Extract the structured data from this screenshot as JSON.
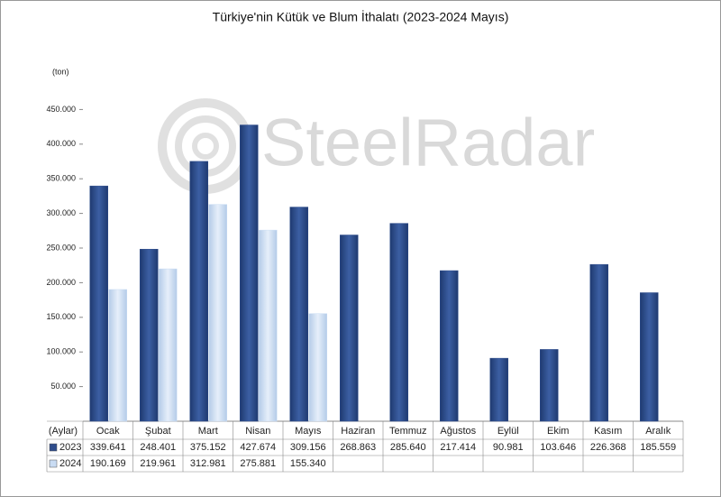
{
  "chart_data": {
    "type": "bar",
    "title": "Türkiye'nin Kütük ve Blum İthalatı (2023-2024 Mayıs)",
    "y_label": "(ton)",
    "x_label": "(Aylar)",
    "watermark": "SteelRadar",
    "categories": [
      "Ocak",
      "Şubat",
      "Mart",
      "Nisan",
      "Mayıs",
      "Haziran",
      "Temmuz",
      "Ağustos",
      "Eylül",
      "Ekim",
      "Kasım",
      "Aralık"
    ],
    "series": [
      {
        "name": "2023",
        "color": "#2f4d8c",
        "values": [
          339641,
          248401,
          375152,
          427674,
          309156,
          268863,
          285640,
          217414,
          90981,
          103646,
          226368,
          185559
        ],
        "value_labels": [
          "339.641",
          "248.401",
          "375.152",
          "427.674",
          "309.156",
          "268.863",
          "285.640",
          "217.414",
          "90.981",
          "103.646",
          "226.368",
          "185.559"
        ]
      },
      {
        "name": "2024",
        "color": "#c9dcf3",
        "values": [
          190169,
          219961,
          312981,
          275881,
          155340,
          null,
          null,
          null,
          null,
          null,
          null,
          null
        ],
        "value_labels": [
          "190.169",
          "219.961",
          "312.981",
          "275.881",
          "155.340",
          null,
          null,
          null,
          null,
          null,
          null,
          null
        ]
      }
    ],
    "ylim": [
      0,
      500000
    ],
    "yticks": [
      {
        "value": 50000,
        "label": "50.000"
      },
      {
        "value": 100000,
        "label": "100.000"
      },
      {
        "value": 150000,
        "label": "150.000"
      },
      {
        "value": 200000,
        "label": "200.000"
      },
      {
        "value": 250000,
        "label": "250.000"
      },
      {
        "value": 300000,
        "label": "300.000"
      },
      {
        "value": 350000,
        "label": "350.000"
      },
      {
        "value": 400000,
        "label": "400.000"
      },
      {
        "value": 450000,
        "label": "450.000"
      }
    ],
    "grid": false
  }
}
